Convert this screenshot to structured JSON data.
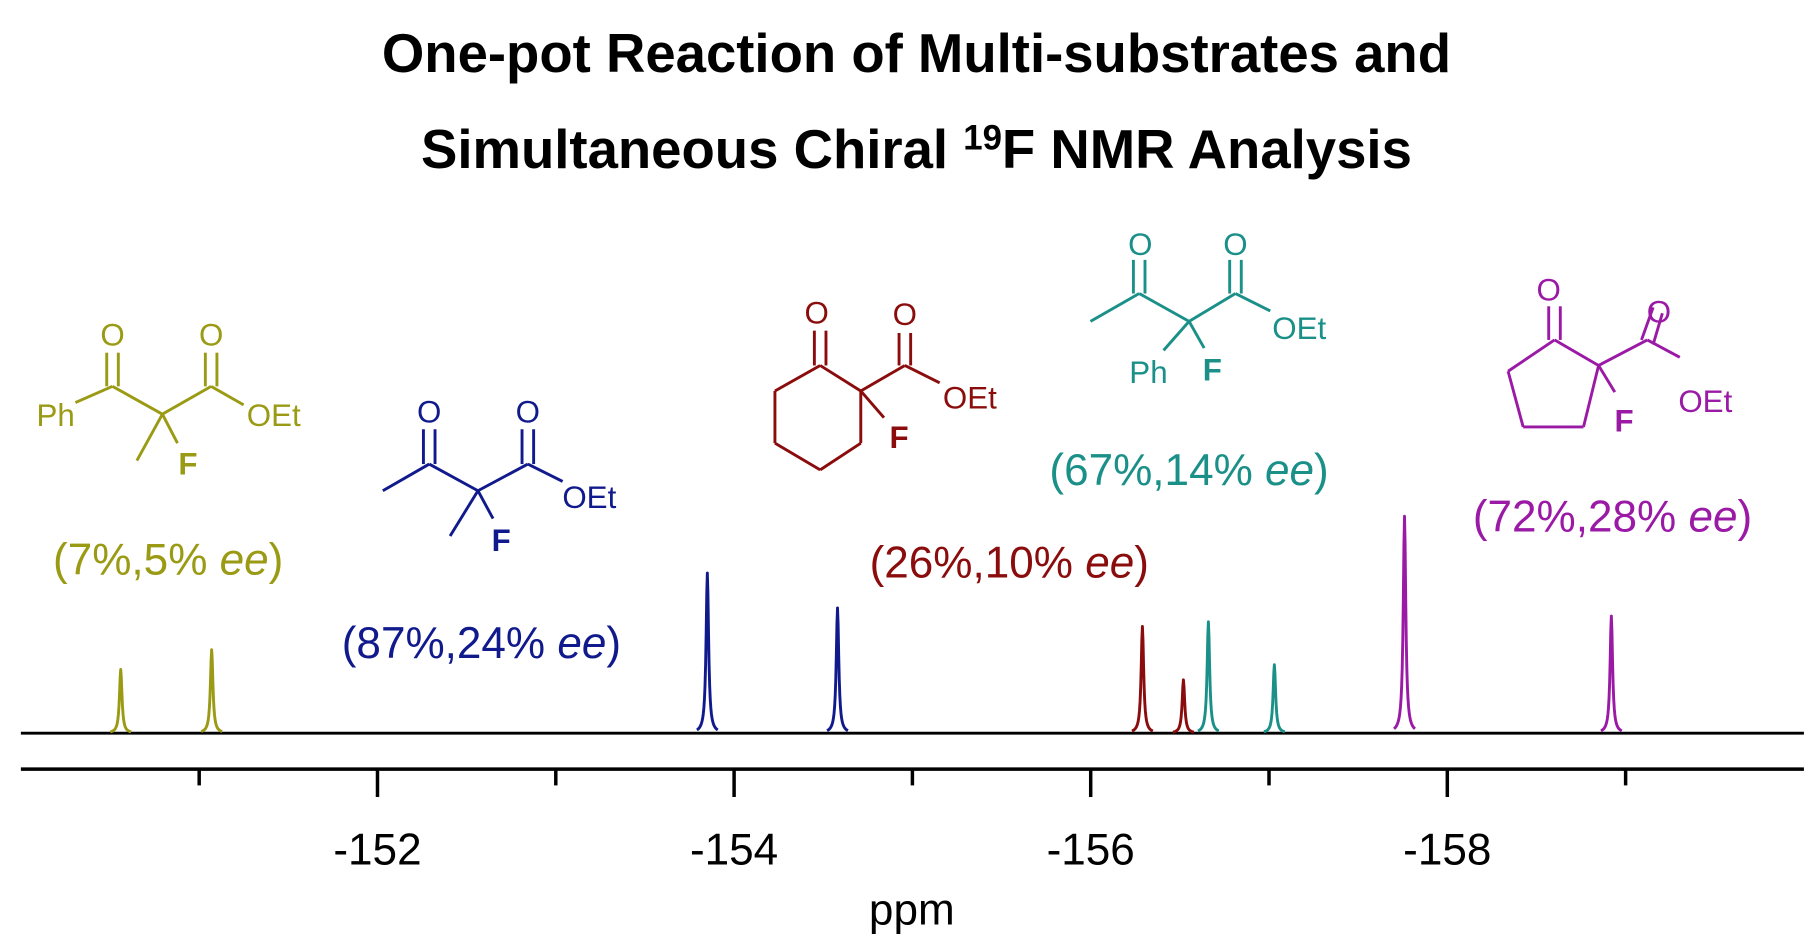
{
  "chart_data": {
    "type": "nmr",
    "title": [
      "One-pot Reaction of Multi-substrates and",
      "Simultaneous Chiral ",
      "19",
      "F NMR Analysis"
    ],
    "x_label": "ppm",
    "xlim": [
      -150,
      -160
    ],
    "xticks": [
      -152,
      -154,
      -156,
      -158
    ],
    "xminorticks": [
      -151,
      -153,
      -155,
      -157,
      -159
    ],
    "ylim": [
      0,
      200
    ],
    "series": [
      {
        "color": "#9a9a14",
        "x": [
          -150.56,
          -151.07
        ],
        "values": [
          55,
          72
        ],
        "structure": [
          "O",
          "O",
          "Ph",
          "OEt",
          "F"
        ],
        "label": [
          "(7%,5% ",
          "ee",
          ")"
        ]
      },
      {
        "color": "#101a8c",
        "x": [
          -153.85,
          -154.58
        ],
        "values": [
          138,
          108
        ],
        "structure": [
          "O",
          "O",
          "OEt",
          "F"
        ],
        "label": [
          "(87%,24% ",
          "ee",
          ")"
        ]
      },
      {
        "color": "#8b0c0c",
        "x": [
          -156.29,
          -156.52
        ],
        "values": [
          92,
          46
        ],
        "structure": [
          "O",
          "O",
          "OEt",
          "F"
        ],
        "label": [
          "(26%,10% ",
          "ee",
          ")"
        ]
      },
      {
        "color": "#1a9088",
        "x": [
          -156.66,
          -157.03
        ],
        "values": [
          96,
          59
        ],
        "structure": [
          "O",
          "O",
          "Ph",
          "F",
          "OEt"
        ],
        "label": [
          "(67%,14% ",
          "ee",
          ")"
        ]
      },
      {
        "color": "#9a1aa6",
        "x": [
          -157.76,
          -158.92
        ],
        "values": [
          187,
          101
        ],
        "structure": [
          "O",
          "O",
          "OEt",
          "F"
        ],
        "label": [
          "(72%,28% ",
          "ee",
          ")"
        ]
      }
    ]
  }
}
